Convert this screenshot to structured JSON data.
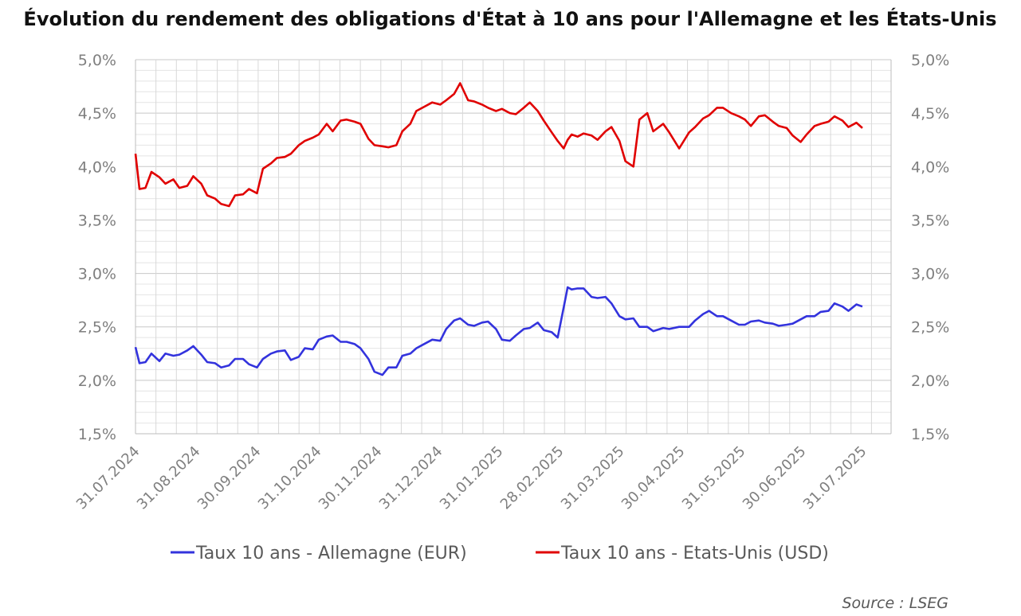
{
  "chart_data": {
    "type": "line",
    "title": "Évolution du rendement des obligations d'État à 10 ans pour l'Allemagne et les États-Unis",
    "source": "Source : LSEG",
    "ylim": [
      1.5,
      5.0
    ],
    "y_ticks": [
      1.5,
      2.0,
      2.5,
      3.0,
      3.5,
      4.0,
      4.5,
      5.0
    ],
    "y_tick_labels": [
      "1,5%",
      "2,0%",
      "2,5%",
      "3,0%",
      "3,5%",
      "4,0%",
      "4,5%",
      "5,0%"
    ],
    "secondary_y_tick_labels": [
      "1,5%",
      "2,0%",
      "2,5%",
      "3,0%",
      "3,5%",
      "4,0%",
      "4,5%",
      "5,0%"
    ],
    "x_tick_labels": [
      "31.07.2024",
      "31.08.2024",
      "30.09.2024",
      "31.10.2024",
      "30.11.2024",
      "31.12.2024",
      "31.01.2025",
      "28.02.2025",
      "31.03.2025",
      "30.04.2025",
      "31.05.2025",
      "30.06.2025",
      "31.07.2025"
    ],
    "grid": true,
    "legend_position": "bottom",
    "series": [
      {
        "name": "Taux 10 ans - Allemagne (EUR)",
        "color": "#3333dd",
        "x": [
          "2024-07-31",
          "2024-08-02",
          "2024-08-05",
          "2024-08-08",
          "2024-08-12",
          "2024-08-15",
          "2024-08-19",
          "2024-08-22",
          "2024-08-26",
          "2024-08-29",
          "2024-09-02",
          "2024-09-05",
          "2024-09-09",
          "2024-09-12",
          "2024-09-16",
          "2024-09-19",
          "2024-09-23",
          "2024-09-26",
          "2024-09-30",
          "2024-10-03",
          "2024-10-07",
          "2024-10-10",
          "2024-10-14",
          "2024-10-17",
          "2024-10-21",
          "2024-10-24",
          "2024-10-28",
          "2024-10-31",
          "2024-11-04",
          "2024-11-07",
          "2024-11-11",
          "2024-11-14",
          "2024-11-18",
          "2024-11-21",
          "2024-11-25",
          "2024-11-28",
          "2024-12-02",
          "2024-12-05",
          "2024-12-09",
          "2024-12-12",
          "2024-12-16",
          "2024-12-19",
          "2024-12-23",
          "2024-12-27",
          "2024-12-31",
          "2025-01-03",
          "2025-01-07",
          "2025-01-10",
          "2025-01-14",
          "2025-01-17",
          "2025-01-21",
          "2025-01-24",
          "2025-01-28",
          "2025-01-31",
          "2025-02-04",
          "2025-02-07",
          "2025-02-11",
          "2025-02-14",
          "2025-02-18",
          "2025-02-21",
          "2025-02-25",
          "2025-02-28",
          "2025-03-03",
          "2025-03-05",
          "2025-03-07",
          "2025-03-10",
          "2025-03-13",
          "2025-03-17",
          "2025-03-20",
          "2025-03-24",
          "2025-03-27",
          "2025-03-31",
          "2025-04-03",
          "2025-04-07",
          "2025-04-10",
          "2025-04-14",
          "2025-04-17",
          "2025-04-22",
          "2025-04-25",
          "2025-04-30",
          "2025-05-05",
          "2025-05-08",
          "2025-05-12",
          "2025-05-15",
          "2025-05-19",
          "2025-05-22",
          "2025-05-26",
          "2025-05-30",
          "2025-06-02",
          "2025-06-05",
          "2025-06-09",
          "2025-06-12",
          "2025-06-16",
          "2025-06-19",
          "2025-06-23",
          "2025-06-26",
          "2025-06-30",
          "2025-07-03",
          "2025-07-07",
          "2025-07-10",
          "2025-07-14",
          "2025-07-17",
          "2025-07-21",
          "2025-07-24",
          "2025-07-28",
          "2025-07-31"
        ],
        "values": [
          2.31,
          2.16,
          2.17,
          2.25,
          2.18,
          2.25,
          2.23,
          2.24,
          2.28,
          2.32,
          2.24,
          2.17,
          2.16,
          2.12,
          2.14,
          2.2,
          2.2,
          2.15,
          2.12,
          2.2,
          2.25,
          2.27,
          2.28,
          2.19,
          2.22,
          2.3,
          2.29,
          2.38,
          2.41,
          2.42,
          2.36,
          2.36,
          2.34,
          2.3,
          2.2,
          2.08,
          2.05,
          2.12,
          2.12,
          2.23,
          2.25,
          2.3,
          2.34,
          2.38,
          2.37,
          2.48,
          2.56,
          2.58,
          2.52,
          2.51,
          2.54,
          2.55,
          2.48,
          2.38,
          2.37,
          2.42,
          2.48,
          2.49,
          2.54,
          2.47,
          2.45,
          2.4,
          2.68,
          2.87,
          2.85,
          2.86,
          2.86,
          2.78,
          2.77,
          2.78,
          2.72,
          2.6,
          2.57,
          2.58,
          2.5,
          2.5,
          2.46,
          2.49,
          2.48,
          2.5,
          2.5,
          2.56,
          2.62,
          2.65,
          2.6,
          2.6,
          2.56,
          2.52,
          2.52,
          2.55,
          2.56,
          2.54,
          2.53,
          2.51,
          2.52,
          2.53,
          2.57,
          2.6,
          2.6,
          2.64,
          2.65,
          2.72,
          2.69,
          2.65,
          2.71,
          2.69
        ]
      },
      {
        "name": "Taux 10 ans - Etats-Unis (USD)",
        "color": "#e00000",
        "x": [
          "2024-07-31",
          "2024-08-02",
          "2024-08-05",
          "2024-08-08",
          "2024-08-12",
          "2024-08-15",
          "2024-08-19",
          "2024-08-22",
          "2024-08-26",
          "2024-08-29",
          "2024-09-02",
          "2024-09-05",
          "2024-09-09",
          "2024-09-12",
          "2024-09-16",
          "2024-09-19",
          "2024-09-23",
          "2024-09-26",
          "2024-09-30",
          "2024-10-03",
          "2024-10-07",
          "2024-10-10",
          "2024-10-14",
          "2024-10-17",
          "2024-10-21",
          "2024-10-24",
          "2024-10-28",
          "2024-10-31",
          "2024-11-04",
          "2024-11-07",
          "2024-11-11",
          "2024-11-14",
          "2024-11-18",
          "2024-11-21",
          "2024-11-25",
          "2024-11-28",
          "2024-12-02",
          "2024-12-05",
          "2024-12-09",
          "2024-12-12",
          "2024-12-16",
          "2024-12-19",
          "2024-12-23",
          "2024-12-27",
          "2024-12-31",
          "2025-01-03",
          "2025-01-07",
          "2025-01-10",
          "2025-01-14",
          "2025-01-17",
          "2025-01-21",
          "2025-01-24",
          "2025-01-28",
          "2025-01-31",
          "2025-02-04",
          "2025-02-07",
          "2025-02-11",
          "2025-02-14",
          "2025-02-18",
          "2025-02-21",
          "2025-02-25",
          "2025-02-28",
          "2025-03-03",
          "2025-03-05",
          "2025-03-07",
          "2025-03-10",
          "2025-03-13",
          "2025-03-17",
          "2025-03-20",
          "2025-03-24",
          "2025-03-27",
          "2025-03-31",
          "2025-04-03",
          "2025-04-07",
          "2025-04-10",
          "2025-04-14",
          "2025-04-17",
          "2025-04-22",
          "2025-04-25",
          "2025-04-30",
          "2025-05-05",
          "2025-05-08",
          "2025-05-12",
          "2025-05-15",
          "2025-05-19",
          "2025-05-22",
          "2025-05-26",
          "2025-05-30",
          "2025-06-02",
          "2025-06-05",
          "2025-06-09",
          "2025-06-12",
          "2025-06-16",
          "2025-06-19",
          "2025-06-23",
          "2025-06-26",
          "2025-06-30",
          "2025-07-03",
          "2025-07-07",
          "2025-07-10",
          "2025-07-14",
          "2025-07-17",
          "2025-07-21",
          "2025-07-24",
          "2025-07-28",
          "2025-07-31"
        ],
        "values": [
          4.12,
          3.79,
          3.8,
          3.95,
          3.9,
          3.84,
          3.88,
          3.8,
          3.82,
          3.91,
          3.84,
          3.73,
          3.7,
          3.65,
          3.63,
          3.73,
          3.74,
          3.79,
          3.75,
          3.98,
          4.03,
          4.08,
          4.09,
          4.12,
          4.2,
          4.24,
          4.27,
          4.3,
          4.4,
          4.33,
          4.43,
          4.44,
          4.42,
          4.4,
          4.26,
          4.2,
          4.19,
          4.18,
          4.2,
          4.33,
          4.4,
          4.52,
          4.56,
          4.6,
          4.58,
          4.62,
          4.68,
          4.78,
          4.62,
          4.61,
          4.58,
          4.55,
          4.52,
          4.54,
          4.5,
          4.49,
          4.55,
          4.6,
          4.52,
          4.43,
          4.32,
          4.24,
          4.17,
          4.25,
          4.3,
          4.28,
          4.31,
          4.29,
          4.25,
          4.33,
          4.37,
          4.24,
          4.05,
          4.0,
          4.44,
          4.5,
          4.33,
          4.4,
          4.32,
          4.17,
          4.32,
          4.37,
          4.45,
          4.48,
          4.55,
          4.55,
          4.5,
          4.47,
          4.44,
          4.38,
          4.47,
          4.48,
          4.42,
          4.38,
          4.36,
          4.29,
          4.23,
          4.3,
          4.38,
          4.4,
          4.42,
          4.47,
          4.43,
          4.37,
          4.41,
          4.36
        ]
      }
    ]
  }
}
